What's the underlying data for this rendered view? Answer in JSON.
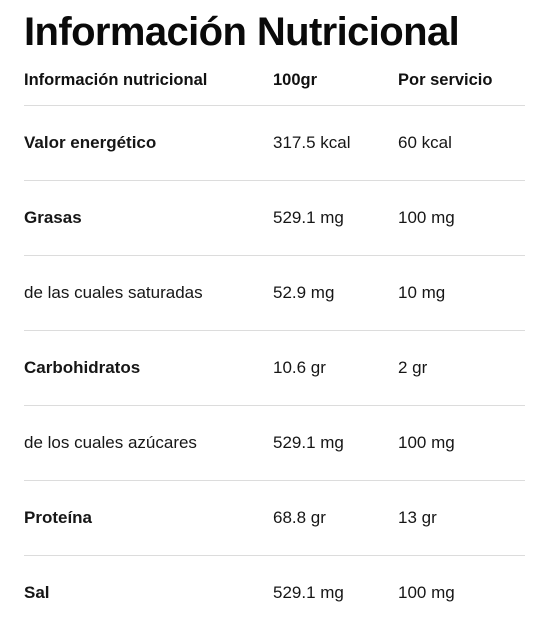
{
  "title": "Información Nutricional",
  "table": {
    "headers": {
      "name": "Información nutricional",
      "per_100g": "100gr",
      "per_serving": "Por servicio"
    },
    "rows": [
      {
        "name": "Valor energético",
        "per_100g": "317.5 kcal",
        "per_serving": "60 kcal",
        "bold": true
      },
      {
        "name": "Grasas",
        "per_100g": "529.1 mg",
        "per_serving": "100 mg",
        "bold": true
      },
      {
        "name": "de las cuales saturadas",
        "per_100g": "52.9 mg",
        "per_serving": "10 mg",
        "bold": false
      },
      {
        "name": "Carbohidratos",
        "per_100g": "10.6 gr",
        "per_serving": "2 gr",
        "bold": true
      },
      {
        "name": "de los cuales azúcares",
        "per_100g": "529.1 mg",
        "per_serving": "100 mg",
        "bold": false
      },
      {
        "name": "Proteína",
        "per_100g": "68.8 gr",
        "per_serving": "13 gr",
        "bold": true
      },
      {
        "name": "Sal",
        "per_100g": "529.1 mg",
        "per_serving": "100 mg",
        "bold": true
      }
    ]
  }
}
